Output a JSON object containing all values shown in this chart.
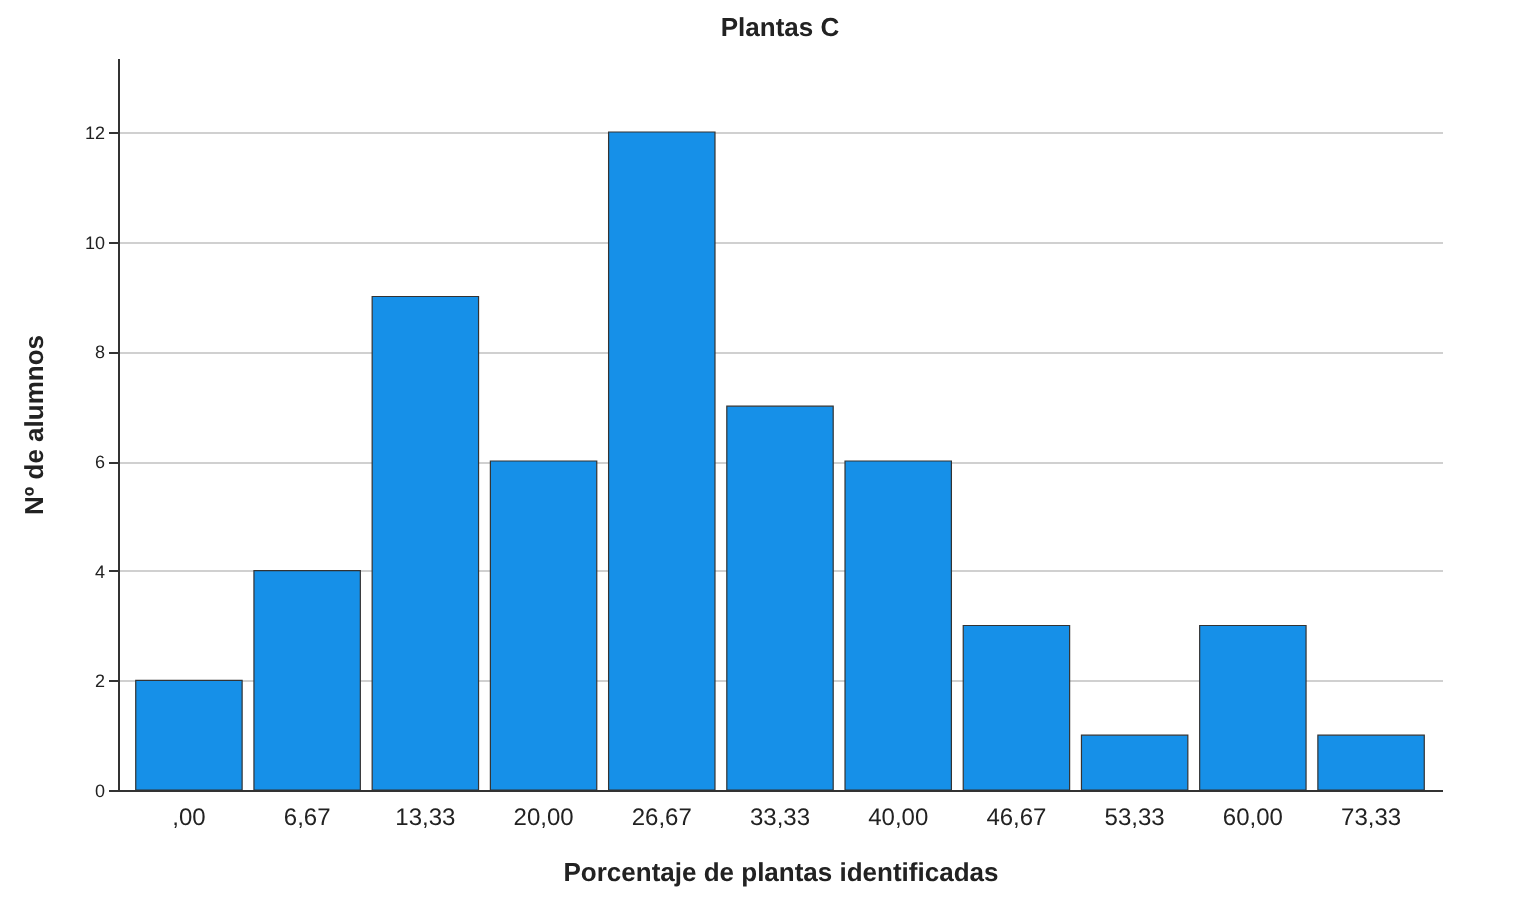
{
  "chart_data": {
    "type": "bar",
    "title": "Plantas C",
    "xlabel": "Porcentaje de plantas identificadas",
    "ylabel": "Nº de alumnos",
    "categories": [
      ",00",
      "6,67",
      "13,33",
      "20,00",
      "26,67",
      "33,33",
      "40,00",
      "46,67",
      "53,33",
      "60,00",
      "73,33"
    ],
    "values": [
      2,
      4,
      9,
      6,
      12,
      7,
      6,
      3,
      1,
      3,
      1
    ],
    "color": "#1690e8",
    "ylim": [
      0,
      13.35
    ],
    "yticks": [
      0,
      2,
      4,
      6,
      8,
      10,
      12
    ],
    "grid": "y"
  }
}
